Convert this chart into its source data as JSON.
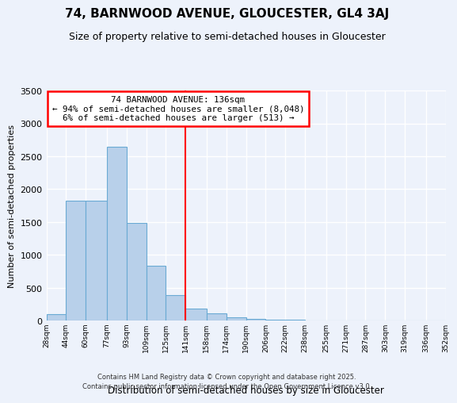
{
  "title": "74, BARNWOOD AVENUE, GLOUCESTER, GL4 3AJ",
  "subtitle": "Size of property relative to semi-detached houses in Gloucester",
  "xlabel": "Distribution of semi-detached houses by size in Gloucester",
  "ylabel": "Number of semi-detached properties",
  "footnote1": "Contains HM Land Registry data © Crown copyright and database right 2025.",
  "footnote2": "Contains public sector information licensed under the Open Government Licence v3.0.",
  "bin_edges": [
    28,
    44,
    60,
    77,
    93,
    109,
    125,
    141,
    158,
    174,
    190,
    206,
    222,
    238,
    255,
    271,
    287,
    303,
    319,
    336,
    352
  ],
  "bin_labels": [
    "28sqm",
    "44sqm",
    "60sqm",
    "77sqm",
    "93sqm",
    "109sqm",
    "125sqm",
    "141sqm",
    "158sqm",
    "174sqm",
    "190sqm",
    "206sqm",
    "222sqm",
    "238sqm",
    "255sqm",
    "271sqm",
    "287sqm",
    "303sqm",
    "319sqm",
    "336sqm",
    "352sqm"
  ],
  "bar_heights": [
    95,
    1830,
    1830,
    2640,
    1490,
    830,
    390,
    185,
    110,
    50,
    25,
    15,
    10,
    5,
    5,
    3,
    2,
    2,
    1,
    1
  ],
  "bar_color": "#b8d0ea",
  "bar_edge_color": "#6aaad4",
  "vline_x": 141,
  "vline_color": "red",
  "ylim": [
    0,
    3500
  ],
  "yticks": [
    0,
    500,
    1000,
    1500,
    2000,
    2500,
    3000,
    3500
  ],
  "annotation_title": "74 BARNWOOD AVENUE: 136sqm",
  "annotation_line1": "← 94% of semi-detached houses are smaller (8,048)",
  "annotation_line2": "6% of semi-detached houses are larger (513) →",
  "annotation_box_color": "white",
  "annotation_box_edge": "red",
  "bg_color": "#edf2fb",
  "grid_color": "white",
  "title_fontsize": 11,
  "subtitle_fontsize": 9
}
